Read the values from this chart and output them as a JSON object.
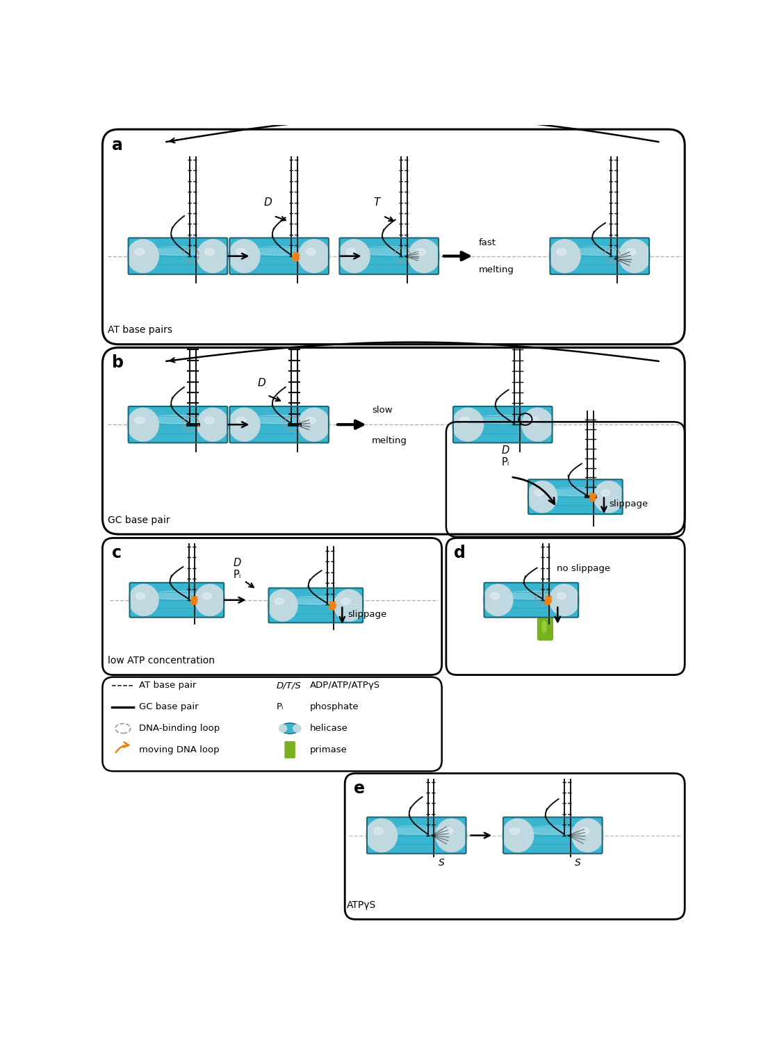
{
  "bg_color": "#ffffff",
  "helicase_color": "#3ab5d0",
  "helicase_mid": "#2898b0",
  "helicase_dark": "#1a6878",
  "sphere_color": "#c0d8e0",
  "orange_color": "#f08010",
  "green_color": "#78b020",
  "dna_color": "#111111",
  "gray_color": "#888888",
  "panel_labels": [
    "a",
    "b",
    "c",
    "d",
    "e"
  ],
  "label_AT": "AT base pairs",
  "label_GC": "GC base pair",
  "label_lowATP": "low ATP concentration",
  "label_fast": "fast",
  "label_melting": "melting",
  "label_slow": "slow",
  "label_D": "D",
  "label_T": "T",
  "label_S": "S",
  "label_slippage": "slippage",
  "label_no_slippage": "no slippage",
  "label_Pi": "Pᵢ",
  "label_ATPgS": "ATPγS"
}
